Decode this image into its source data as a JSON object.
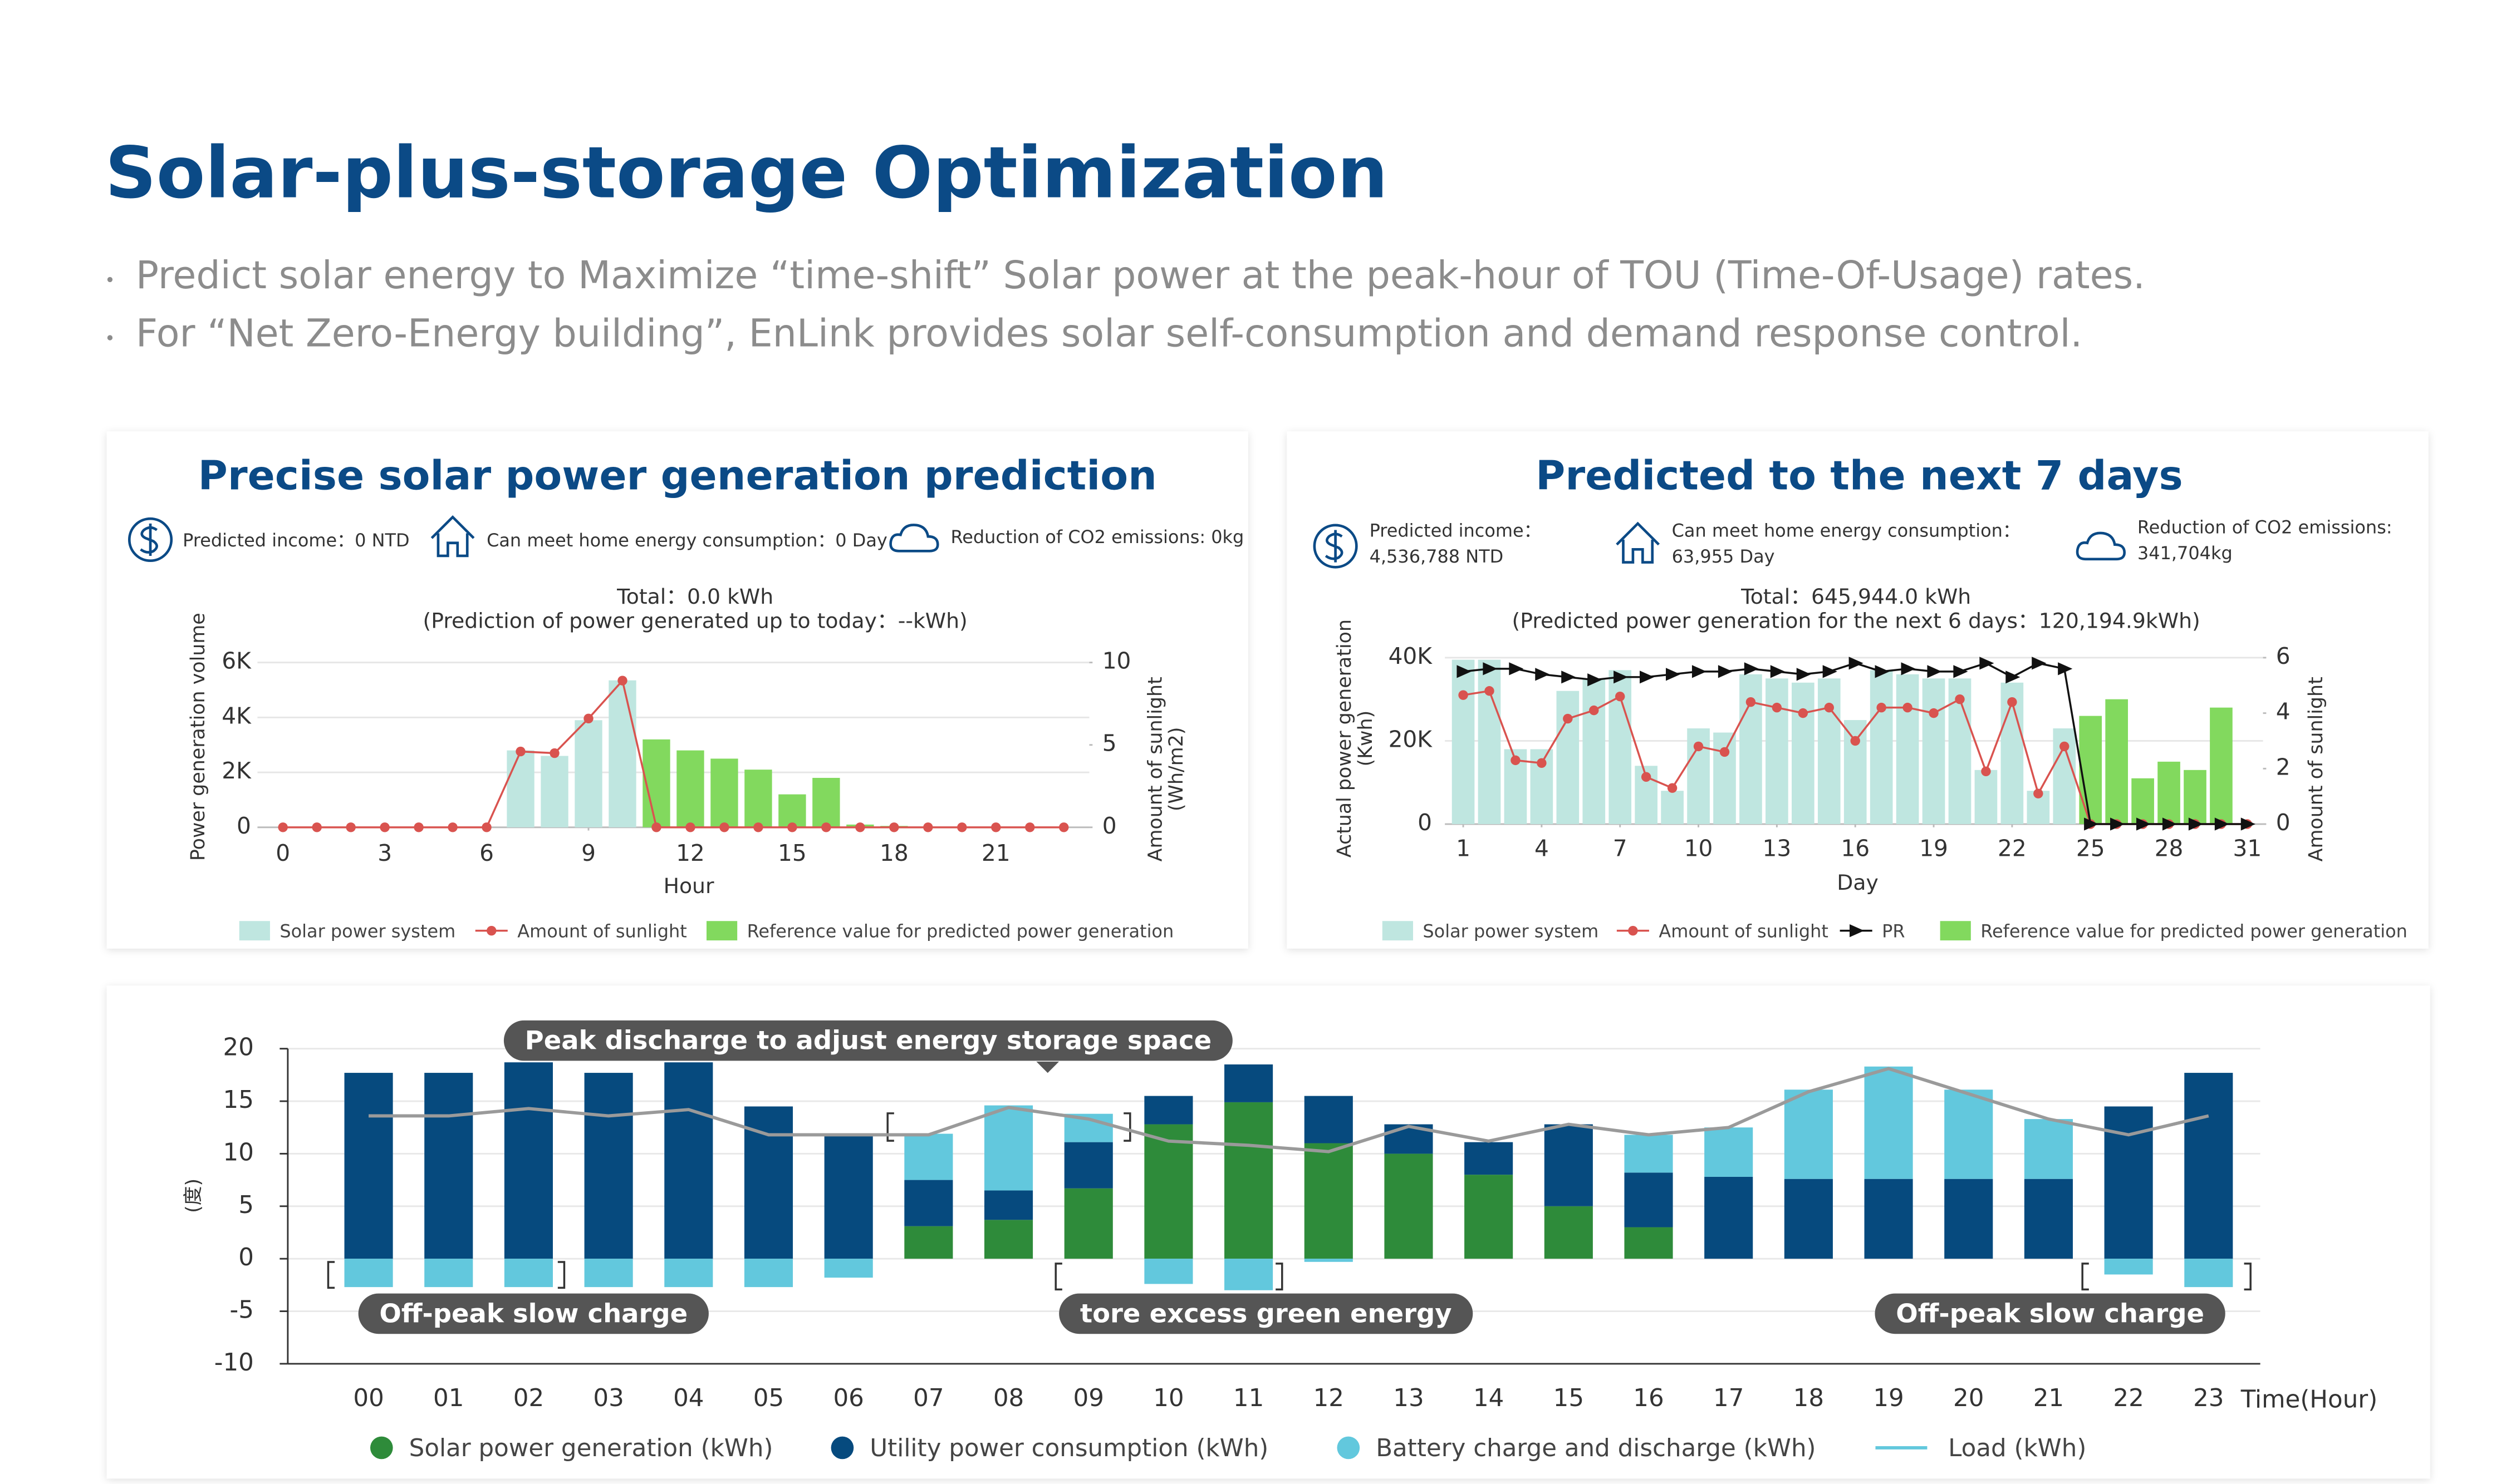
{
  "header": {
    "title": "Solar-plus-storage Optimization",
    "bullets": [
      "Predict solar energy to Maximize “time-shift” Solar power at the peak-hour of TOU (Time-Of-Usage) rates.",
      "For “Net Zero-Energy building”, EnLink provides solar self-consumption and demand response control."
    ]
  },
  "chart_data": [
    {
      "type": "combo",
      "title": "Precise solar power generation prediction",
      "stats": [
        "Predicted income：0 NTD",
        "Can meet home energy consumption：0 Day",
        "Reduction of CO2 emissions: 0kg"
      ],
      "total": "Total：0.0 kWh",
      "subtitle": "(Prediction of power generated up to today：--kWh)",
      "x_label": "Hour",
      "y_label": "Power generation volume",
      "y2_label": [
        "Amount of sunlight",
        "(Wh/m2)"
      ],
      "x": [
        0,
        1,
        2,
        3,
        4,
        5,
        6,
        7,
        8,
        9,
        10,
        11,
        12,
        13,
        14,
        15,
        16,
        17,
        18,
        19,
        20,
        21,
        22,
        23
      ],
      "xlim": [
        -0.75,
        23.75
      ],
      "xticks": [
        0,
        3,
        6,
        9,
        12,
        15,
        18,
        21
      ],
      "ylim": [
        0,
        6000
      ],
      "yticks": [
        0,
        {
          "value": 2000,
          "label": "2K"
        },
        {
          "value": 4000,
          "label": "4K"
        },
        {
          "value": 6000,
          "label": "6K"
        }
      ],
      "y2lim": [
        0,
        10
      ],
      "y2ticks": [
        0,
        5,
        10
      ],
      "grid": true,
      "series": [
        {
          "name": "Solar power system",
          "kind": "bar",
          "color": "#bfe6e0",
          "values": [
            null,
            null,
            null,
            null,
            null,
            null,
            null,
            2800,
            2600,
            3900,
            5350,
            null,
            null,
            null,
            null,
            null,
            null,
            null,
            null,
            null,
            null,
            null,
            null,
            null
          ]
        },
        {
          "name": "Amount of sunlight",
          "kind": "line",
          "marker": "circle",
          "axis": "y2",
          "color": "#d9534f",
          "values": [
            0,
            0,
            0,
            0,
            0,
            0,
            0,
            4.6,
            4.5,
            6.6,
            8.9,
            0,
            0,
            0,
            0,
            0,
            0,
            0,
            0,
            0,
            0,
            0,
            0,
            0
          ]
        },
        {
          "name": "Reference value for predicted power generation",
          "kind": "bar",
          "color": "#82d95e",
          "values": [
            null,
            null,
            null,
            null,
            null,
            null,
            null,
            null,
            null,
            null,
            null,
            3200,
            2800,
            2500,
            2100,
            1200,
            1800,
            100,
            50,
            null,
            null,
            null,
            null,
            null
          ]
        }
      ]
    },
    {
      "type": "combo",
      "title": "Predicted to the next 7 days",
      "stats": [
        {
          "label": "Predicted income：",
          "value": "4,536,788 NTD"
        },
        {
          "label": "Can meet home energy consumption：",
          "value": "63,955 Day"
        },
        {
          "label": "Reduction of CO2 emissions:",
          "value": "341,704kg"
        }
      ],
      "total": "Total：645,944.0 kWh",
      "subtitle": "(Predicted power generation for the next 6 days：120,194.9kWh)",
      "x_label": "Day",
      "y_label": [
        "Actual power generation",
        "(Kwh)"
      ],
      "y2_label": [
        "Amount of sunlight"
      ],
      "x": [
        1,
        2,
        3,
        4,
        5,
        6,
        7,
        8,
        9,
        10,
        11,
        12,
        13,
        14,
        15,
        16,
        17,
        18,
        19,
        20,
        21,
        22,
        23,
        24,
        25,
        26,
        27,
        28,
        29,
        30,
        31
      ],
      "xlim": [
        0.3,
        31.6
      ],
      "xticks": [
        1,
        4,
        7,
        10,
        13,
        16,
        19,
        22,
        25,
        28,
        31
      ],
      "ylim": [
        0,
        40000
      ],
      "yticks": [
        0,
        {
          "value": 20000,
          "label": "20K"
        },
        {
          "value": 40000,
          "label": "40K"
        }
      ],
      "y2lim": [
        0,
        6
      ],
      "y2ticks": [
        0,
        2,
        4,
        6
      ],
      "grid": true,
      "series": [
        {
          "name": "Solar power system",
          "kind": "bar",
          "color": "#bfe6e0",
          "values": [
            39500,
            39500,
            18000,
            18000,
            32000,
            35000,
            37000,
            14000,
            8000,
            23000,
            22000,
            36000,
            35000,
            34000,
            35000,
            25000,
            37000,
            36000,
            35000,
            35000,
            13000,
            34000,
            8000,
            23000,
            null,
            null,
            null,
            null,
            null,
            null,
            null
          ]
        },
        {
          "name": "Amount of sunlight",
          "kind": "line",
          "marker": "circle",
          "axis": "y2",
          "color": "#d9534f",
          "values": [
            4.65,
            4.8,
            2.3,
            2.2,
            3.8,
            4.1,
            4.6,
            1.7,
            1.3,
            2.8,
            2.6,
            4.4,
            4.2,
            4.0,
            4.2,
            3.0,
            4.2,
            4.2,
            4.0,
            4.5,
            1.9,
            4.4,
            1.1,
            2.8,
            0,
            0,
            0,
            0,
            0,
            0,
            0
          ]
        },
        {
          "name": "PR",
          "kind": "line",
          "marker": "triangle",
          "axis": "y2",
          "color": "#111111",
          "values": [
            5.5,
            5.6,
            5.6,
            5.4,
            5.3,
            5.2,
            5.3,
            5.3,
            5.4,
            5.5,
            5.5,
            5.6,
            5.5,
            5.4,
            5.5,
            5.8,
            5.5,
            5.6,
            5.5,
            5.5,
            5.8,
            5.3,
            5.8,
            5.6,
            0,
            0,
            0,
            0,
            0,
            0,
            0
          ]
        },
        {
          "name": "Reference value for predicted power generation",
          "kind": "bar",
          "color": "#82d95e",
          "values": [
            null,
            null,
            null,
            null,
            null,
            null,
            null,
            null,
            null,
            null,
            null,
            null,
            null,
            null,
            null,
            null,
            null,
            null,
            null,
            null,
            null,
            null,
            null,
            null,
            26000,
            30000,
            11000,
            15000,
            13000,
            28000,
            null
          ]
        }
      ]
    },
    {
      "type": "stacked",
      "y_label": "(度)",
      "x_label": "Time(Hour)",
      "categories": [
        "00",
        "01",
        "02",
        "03",
        "04",
        "05",
        "06",
        "07",
        "08",
        "09",
        "10",
        "11",
        "12",
        "13",
        "14",
        "15",
        "16",
        "17",
        "18",
        "19",
        "20",
        "21",
        "22",
        "23"
      ],
      "ylim": [
        -10,
        20
      ],
      "yticks": [
        -10,
        -5,
        0,
        5,
        10,
        15,
        20
      ],
      "grid": true,
      "annotations": [
        "Peak discharge to adjust energy storage space",
        "Off-peak slow charge",
        "tore excess green energy",
        "Off-peak slow charge"
      ],
      "series": [
        {
          "name": "Solar power generation (kWh)",
          "kind": "bar",
          "color": "#2e8b3a",
          "values": [
            0,
            0,
            0,
            0,
            0,
            0,
            0,
            3.1,
            3.7,
            6.7,
            12.8,
            14.9,
            11,
            10,
            8,
            5,
            3,
            0,
            0,
            0,
            0,
            0,
            0,
            0
          ]
        },
        {
          "name": "Utility power consumption (kWh)",
          "kind": "bar",
          "color": "#064a7e",
          "values": [
            17.7,
            17.7,
            18.7,
            17.7,
            18.7,
            14.5,
            11.8,
            4.4,
            2.8,
            4.4,
            2.7,
            3.6,
            4.5,
            2.8,
            3.1,
            7.8,
            5.2,
            7.8,
            7.6,
            7.6,
            7.6,
            7.6,
            14.5,
            17.7
          ]
        },
        {
          "name": "Battery charge and discharge (kWh)",
          "kind": "bar",
          "color": "#62c8dd",
          "values": [
            -2.7,
            -2.7,
            -2.7,
            -2.7,
            -2.7,
            -2.7,
            -1.8,
            4.4,
            8.1,
            2.7,
            -2.4,
            -3,
            -0.3,
            0,
            0,
            0,
            3.6,
            4.7,
            8.5,
            10.7,
            8.5,
            5.7,
            -1.5,
            -2.7
          ]
        },
        {
          "name": "Load (kWh)",
          "kind": "line",
          "color": "#9a9a9a",
          "values": [
            13.6,
            13.6,
            14.3,
            13.6,
            14.2,
            11.8,
            11.8,
            11.8,
            14.4,
            13.3,
            11.2,
            10.8,
            10.2,
            12.6,
            11.2,
            12.8,
            11.8,
            12.5,
            15.9,
            18.1,
            15.7,
            13.3,
            11.8,
            13.6
          ]
        }
      ]
    }
  ]
}
